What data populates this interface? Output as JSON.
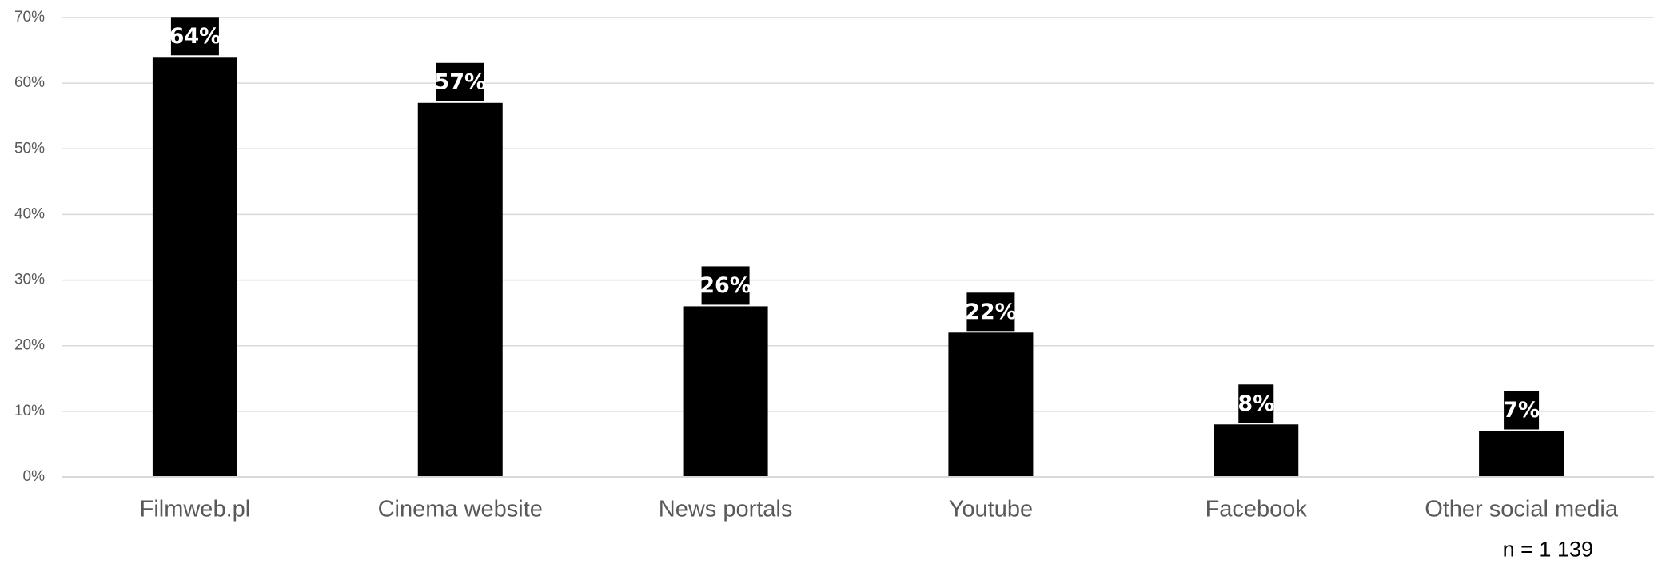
{
  "chart_data": {
    "type": "bar",
    "title": "",
    "xlabel": "",
    "ylabel": "",
    "categories": [
      "Filmweb.pl",
      "Cinema website",
      "News portals",
      "Youtube",
      "Facebook",
      "Other social media"
    ],
    "values": [
      64,
      57,
      26,
      22,
      8,
      7
    ],
    "data_labels": [
      "64%",
      "57%",
      "26%",
      "22%",
      "8%",
      "7%"
    ],
    "ylim": [
      0,
      70
    ],
    "yticks": [
      0,
      10,
      20,
      30,
      40,
      50,
      60,
      70
    ],
    "ytick_labels": [
      "0%",
      "10%",
      "20%",
      "30%",
      "40%",
      "50%",
      "60%",
      "70%"
    ],
    "grid": true,
    "legend": "none",
    "bar_color": "#000000",
    "label_box_color": "#000000",
    "gridline_color": "#d9d9d9"
  },
  "footnote": "n = 1 139"
}
